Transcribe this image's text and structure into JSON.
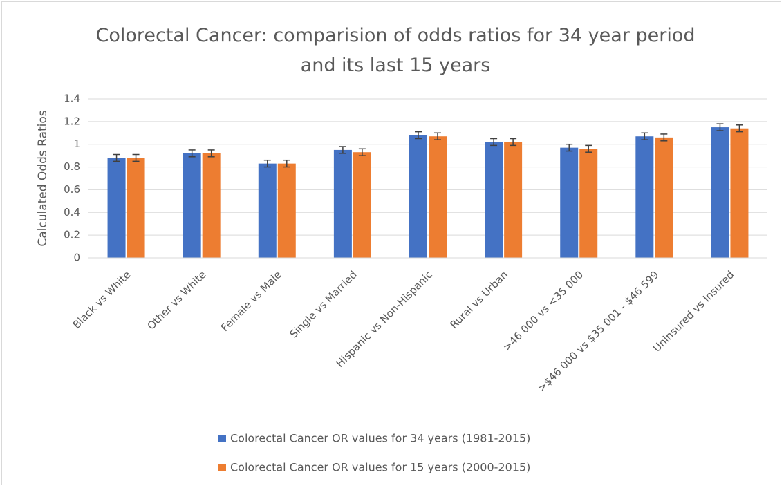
{
  "chart_data": {
    "type": "bar",
    "title": "Colorectal Cancer: comparision of odds ratios for 34 year period and its last 15 years",
    "y_label": "Calculated Odds Ratios",
    "categories": [
      "Black vs White",
      "Other vs White",
      "Female vs Male",
      "Single vs Married",
      "Hispanic vs Non-Hispanic",
      "Rural vs Urban",
      ">46 000 vs <35 000",
      ">$46 000 vs $35 001 - $46 599",
      "Uninsured vs Insured"
    ],
    "series": [
      {
        "name": "Colorectal Cancer OR values for 34 years (1981-2015)",
        "color": "#4472c4",
        "values": [
          0.88,
          0.92,
          0.83,
          0.95,
          1.08,
          1.02,
          0.97,
          1.07,
          1.15
        ],
        "errors": [
          0.03,
          0.03,
          0.03,
          0.03,
          0.03,
          0.03,
          0.03,
          0.03,
          0.03
        ]
      },
      {
        "name": "Colorectal Cancer OR values for 15 years (2000-2015)",
        "color": "#ed7d31",
        "values": [
          0.88,
          0.92,
          0.83,
          0.93,
          1.07,
          1.02,
          0.96,
          1.06,
          1.14
        ],
        "errors": [
          0.03,
          0.03,
          0.03,
          0.03,
          0.03,
          0.03,
          0.03,
          0.03,
          0.03
        ]
      }
    ],
    "ylim": [
      0,
      1.4
    ],
    "yticks": [
      0,
      0.2,
      0.4,
      0.6,
      0.8,
      1,
      1.2,
      1.4
    ],
    "grid": true,
    "legend": "bottom",
    "error_color": "#404040"
  }
}
